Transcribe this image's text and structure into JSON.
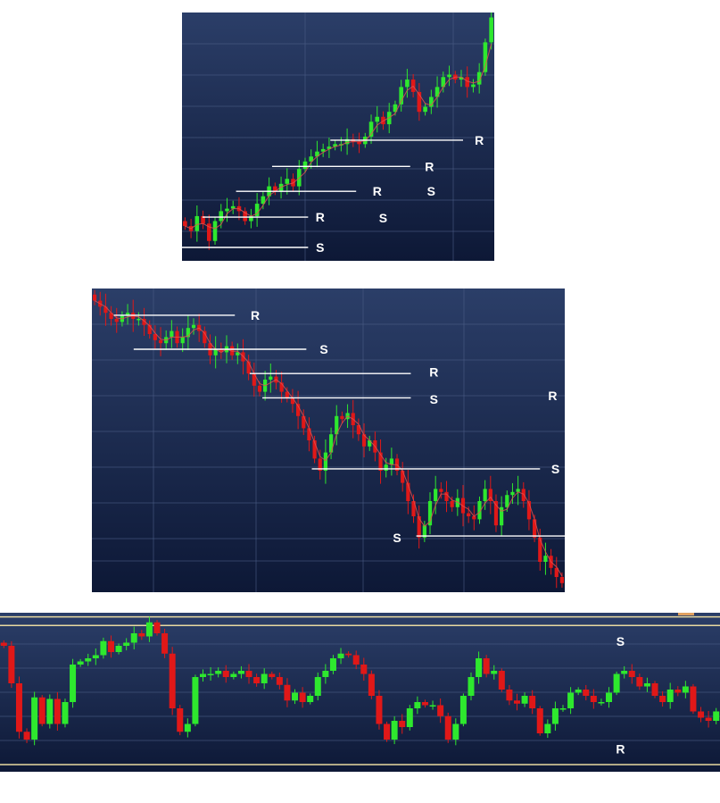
{
  "colors": {
    "background_top": "#2b3e68",
    "background_bottom": "#0d1836",
    "bullish": "#2ee82e",
    "bearish": "#e01818",
    "level_line": "#ffffff",
    "band_line": "#e8d9a0",
    "grid": "#4a5c85",
    "moving_average": "#e05050"
  },
  "chart_data": [
    {
      "type": "candlestick",
      "trend": "uptrend",
      "ylim": [
        0,
        100
      ],
      "grid": true,
      "moving_average": true,
      "closes": [
        14,
        12,
        18,
        15,
        8,
        16,
        20,
        21,
        22,
        20,
        16,
        18,
        23,
        26,
        30,
        28,
        31,
        33,
        30,
        37,
        40,
        42,
        44,
        45,
        46,
        47,
        47,
        49,
        48,
        47,
        50,
        56,
        58,
        55,
        60,
        63,
        70,
        73,
        68,
        60,
        62,
        66,
        70,
        74,
        75,
        73,
        74,
        70,
        71,
        76,
        88,
        98
      ],
      "levels": [
        {
          "label": "S",
          "price": 5.4,
          "from": 0,
          "to": 21
        },
        {
          "label": "R",
          "price": 17.6,
          "from": 3.4,
          "to": 21
        },
        {
          "label": "R",
          "price": 28,
          "from": 9,
          "to": 29
        },
        {
          "label": "R",
          "price": 38,
          "from": 15,
          "to": 38
        },
        {
          "label": "R",
          "price": 48.6,
          "from": 24.7,
          "to": 46.8
        }
      ],
      "annotations": [
        {
          "text": "S",
          "x": 22.5,
          "price": 5.4
        },
        {
          "text": "R",
          "x": 22.5,
          "price": 17.6
        },
        {
          "text": "R",
          "x": 32,
          "price": 28
        },
        {
          "text": "R",
          "x": 40.7,
          "price": 38
        },
        {
          "text": "R",
          "x": 49,
          "price": 48.6
        },
        {
          "text": "S",
          "x": 33,
          "price": 17.3
        },
        {
          "text": "S",
          "x": 41,
          "price": 28
        }
      ]
    },
    {
      "type": "candlestick",
      "trend": "downtrend",
      "ylim": [
        0,
        100
      ],
      "grid": true,
      "moving_average": true,
      "closes": [
        96,
        94,
        92,
        90,
        89,
        91,
        92,
        90,
        90,
        88,
        85,
        83,
        82,
        84,
        86,
        82,
        84,
        87,
        88,
        86,
        82,
        78,
        80,
        79,
        81,
        78,
        79,
        76,
        72,
        68,
        66,
        70,
        71,
        69,
        66,
        64,
        62,
        58,
        54,
        50,
        44,
        40,
        46,
        52,
        58,
        57,
        59,
        55,
        52,
        48,
        50,
        46,
        40,
        42,
        44,
        40,
        36,
        30,
        25,
        18,
        22,
        30,
        34,
        33,
        30,
        28,
        31,
        26,
        25,
        24,
        30,
        34,
        30,
        22,
        28,
        32,
        33,
        34,
        30,
        24,
        18,
        10,
        12,
        8,
        5,
        3
      ],
      "levels": [
        {
          "label": "R",
          "price": 91.2,
          "from": 4,
          "to": 26
        },
        {
          "label": "S",
          "price": 80,
          "from": 7.6,
          "to": 39
        },
        {
          "label": "R",
          "price": 72,
          "from": 28.7,
          "to": 58
        },
        {
          "label": "S",
          "price": 64,
          "from": 31,
          "to": 58
        },
        {
          "label": "S",
          "price": 40.6,
          "from": 40,
          "to": 81.5
        },
        {
          "label": "S",
          "price": 18.5,
          "from": 59,
          "to": 86
        }
      ],
      "annotations": [
        {
          "text": "R",
          "x": 29.2,
          "price": 91.2
        },
        {
          "text": "S",
          "x": 41.7,
          "price": 80
        },
        {
          "text": "R",
          "x": 61.7,
          "price": 72.5
        },
        {
          "text": "S",
          "x": 61.7,
          "price": 63.5
        },
        {
          "text": "R",
          "x": 83.3,
          "price": 64.7
        },
        {
          "text": "S",
          "x": 83.8,
          "price": 40.6
        },
        {
          "text": "S",
          "x": 55,
          "price": 18
        }
      ]
    },
    {
      "type": "candlestick",
      "trend": "sideways",
      "ylim": [
        0,
        100
      ],
      "grid": true,
      "moving_average": false,
      "closes": [
        80,
        56,
        25,
        20,
        47,
        30,
        46,
        30,
        44,
        68,
        70,
        72,
        74,
        83,
        76,
        80,
        82,
        88,
        86,
        95,
        88,
        75,
        40,
        25,
        30,
        60,
        62,
        62,
        64,
        60,
        62,
        64,
        60,
        56,
        62,
        60,
        55,
        45,
        50,
        44,
        48,
        60,
        64,
        72,
        75,
        74,
        68,
        62,
        48,
        30,
        20,
        32,
        28,
        40,
        44,
        42,
        42,
        35,
        20,
        30,
        48,
        60,
        72,
        62,
        64,
        52,
        45,
        43,
        48,
        40,
        24,
        30,
        40,
        40,
        50,
        52,
        48,
        44,
        44,
        50,
        62,
        64,
        60,
        54,
        56,
        48,
        44,
        52,
        50,
        54,
        38,
        34,
        32,
        38
      ],
      "bands": [
        98.5,
        93,
        4
      ],
      "annotations": [
        {
          "text": "S",
          "x": 80.5,
          "price": 83
        },
        {
          "text": "R",
          "x": 80.5,
          "price": 14
        }
      ]
    }
  ]
}
